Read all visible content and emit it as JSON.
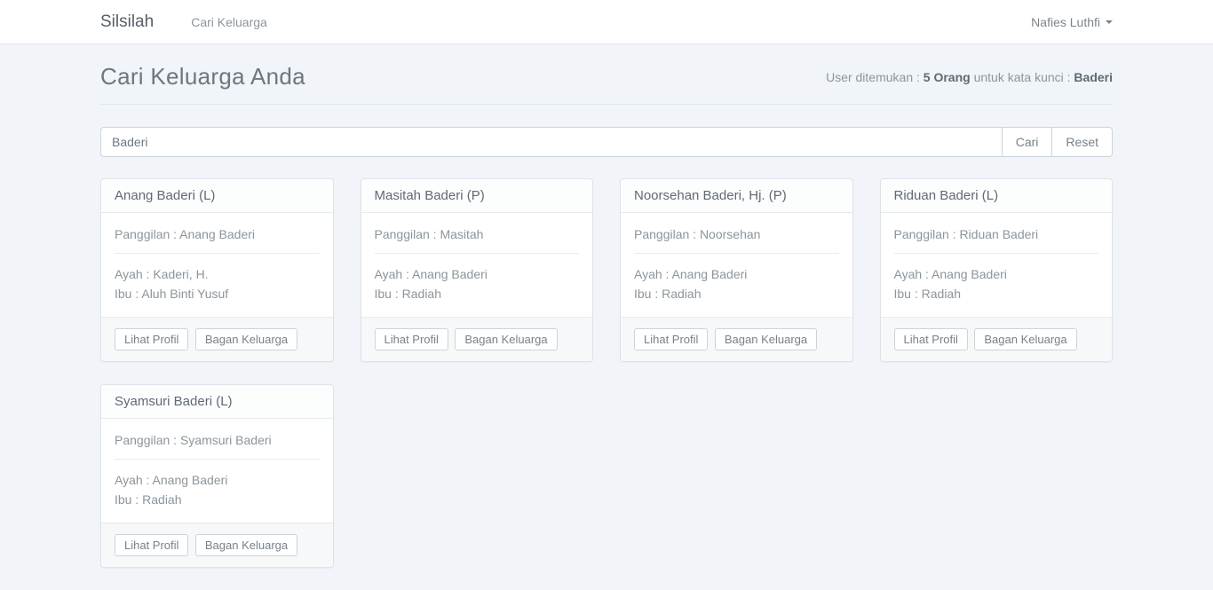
{
  "colors": {
    "page_background": "#f1f4f8",
    "navbar_background": "#ffffff",
    "card_border": "#dde3e8",
    "text_muted": "#8b959c",
    "text_dark": "#5f6a73"
  },
  "navbar": {
    "brand": "Silsilah",
    "nav_link": "Cari Keluarga",
    "user_name": "Nafies Luthfi"
  },
  "page": {
    "title": "Cari Keluarga Anda",
    "summary": {
      "prefix": "User ditemukan : ",
      "count": "5 Orang",
      "middle": " untuk kata kunci : ",
      "keyword": "Baderi"
    }
  },
  "search": {
    "value": "Baderi",
    "cari_label": "Cari",
    "reset_label": "Reset"
  },
  "buttons": {
    "lihat_profil": "Lihat Profil",
    "bagan_keluarga": "Bagan Keluarga"
  },
  "cards": [
    {
      "title": "Anang Baderi (L)",
      "panggilan": "Panggilan : Anang Baderi",
      "ayah": "Ayah : Kaderi, H.",
      "ibu": "Ibu : Aluh Binti Yusuf"
    },
    {
      "title": "Masitah Baderi (P)",
      "panggilan": "Panggilan : Masitah",
      "ayah": "Ayah : Anang Baderi",
      "ibu": "Ibu : Radiah"
    },
    {
      "title": "Noorsehan Baderi, Hj. (P)",
      "panggilan": "Panggilan : Noorsehan",
      "ayah": "Ayah : Anang Baderi",
      "ibu": "Ibu : Radiah"
    },
    {
      "title": "Riduan Baderi (L)",
      "panggilan": "Panggilan : Riduan Baderi",
      "ayah": "Ayah : Anang Baderi",
      "ibu": "Ibu : Radiah"
    },
    {
      "title": "Syamsuri Baderi (L)",
      "panggilan": "Panggilan : Syamsuri Baderi",
      "ayah": "Ayah : Anang Baderi",
      "ibu": "Ibu : Radiah"
    }
  ]
}
